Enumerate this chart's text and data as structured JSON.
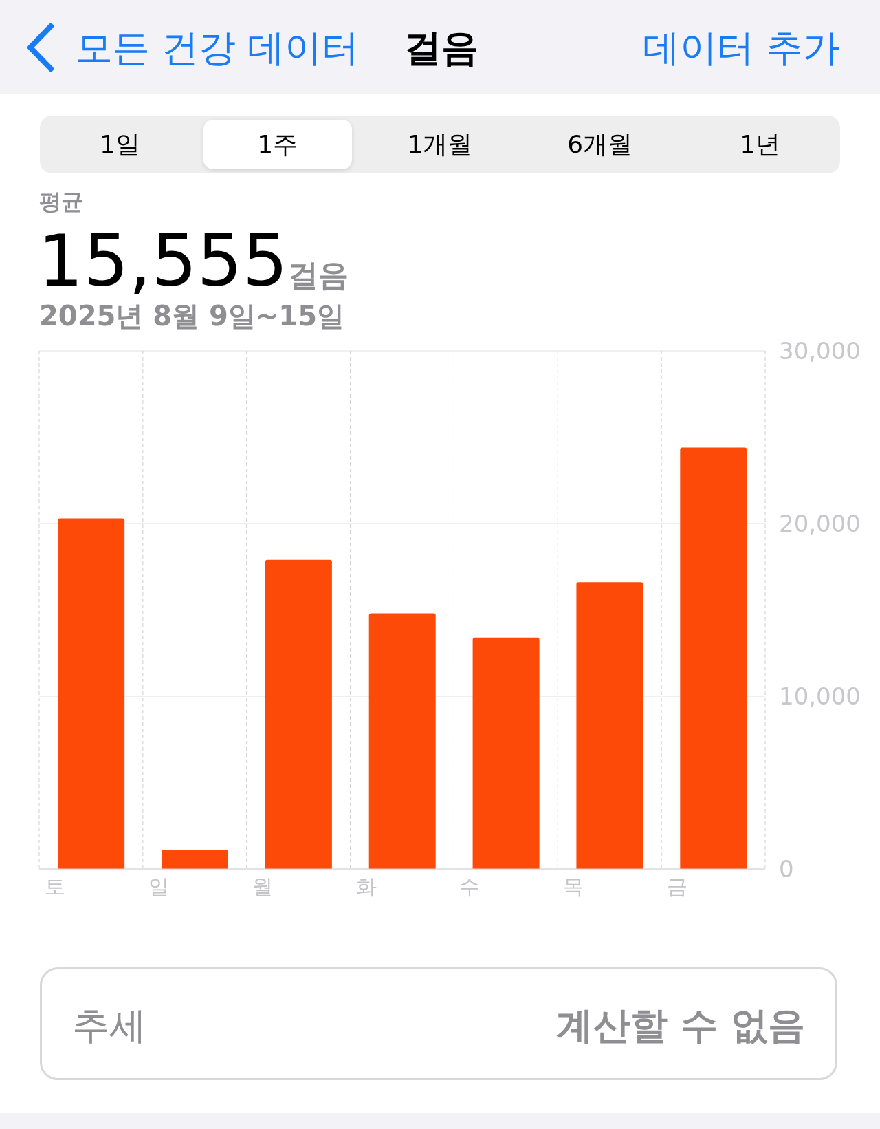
{
  "chart_data": {
    "type": "bar",
    "title": "걸음",
    "categories": [
      "토",
      "일",
      "월",
      "화",
      "수",
      "목",
      "금"
    ],
    "values": [
      20300,
      1100,
      17900,
      14800,
      13400,
      16600,
      24400
    ],
    "color": "#fe4a09",
    "ylim": [
      0,
      30000
    ],
    "yticks": [
      0,
      {
        "value": 10000,
        "label": "10,000"
      },
      {
        "value": 20000,
        "label": "20,000"
      },
      {
        "value": 30000,
        "label": "30,000"
      }
    ],
    "grid": true,
    "annotations": [
      "모든 건강 데이터",
      "데이터 추가",
      "1일",
      "1주",
      "1개월",
      "6개월",
      "1년",
      "평균",
      "15,555",
      "걸음",
      "2025년 8월 9일~15일",
      "추세",
      "계산할 수 없음"
    ]
  }
}
